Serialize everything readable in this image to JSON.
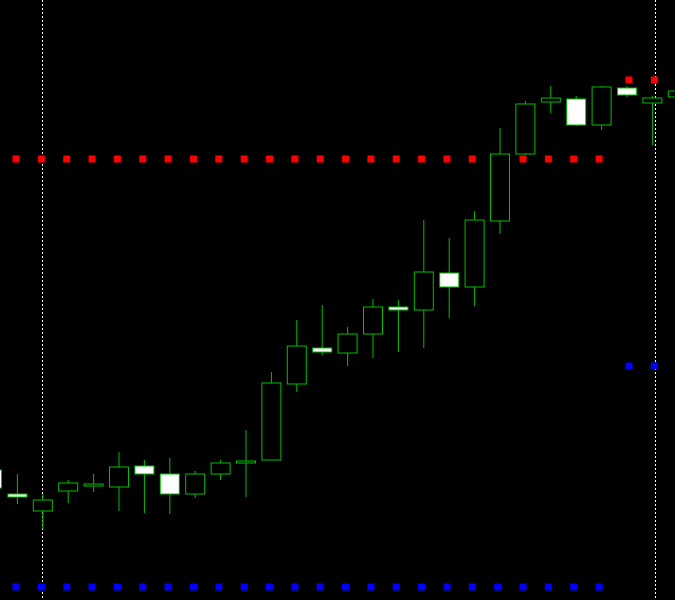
{
  "chart_data": {
    "type": "candlestick",
    "title": "",
    "xlabel": "",
    "ylabel": "",
    "background": "#000000",
    "colors": {
      "bull_body": "#000000",
      "bear_body": "#FFFFFF",
      "candle_outline": "#00C000",
      "wick": "#00C000",
      "resistance_dots": "#FF0000",
      "support_dots": "#0000FF",
      "vertical_separators": "#FFFFFF"
    },
    "grid": false,
    "legend": "none",
    "ylim": [
      0,
      600
    ],
    "candles": [
      {
        "open": 130,
        "close": 112,
        "high": 134,
        "low": 108
      },
      {
        "open": 106,
        "close": 103,
        "high": 126,
        "low": 96
      },
      {
        "open": 89,
        "close": 100,
        "high": 106,
        "low": 71
      },
      {
        "open": 109,
        "close": 117,
        "high": 120,
        "low": 97
      },
      {
        "open": 114,
        "close": 116,
        "high": 126,
        "low": 108
      },
      {
        "open": 113,
        "close": 133,
        "high": 148,
        "low": 89
      },
      {
        "open": 134,
        "close": 126,
        "high": 140,
        "low": 87
      },
      {
        "open": 126,
        "close": 106,
        "high": 142,
        "low": 86
      },
      {
        "open": 106,
        "close": 126,
        "high": 129,
        "low": 102
      },
      {
        "open": 126,
        "close": 137,
        "high": 140,
        "low": 120
      },
      {
        "open": 137,
        "close": 139,
        "high": 170,
        "low": 103
      },
      {
        "open": 140,
        "close": 217,
        "high": 228,
        "low": 140
      },
      {
        "open": 216,
        "close": 254,
        "high": 280,
        "low": 208
      },
      {
        "open": 252,
        "close": 248,
        "high": 295,
        "low": 245
      },
      {
        "open": 247,
        "close": 266,
        "high": 273,
        "low": 234
      },
      {
        "open": 266,
        "close": 293,
        "high": 301,
        "low": 242
      },
      {
        "open": 293,
        "close": 290,
        "high": 300,
        "low": 248
      },
      {
        "open": 290,
        "close": 328,
        "high": 380,
        "low": 252
      },
      {
        "open": 327,
        "close": 313,
        "high": 362,
        "low": 282
      },
      {
        "open": 313,
        "close": 380,
        "high": 389,
        "low": 294
      },
      {
        "open": 379,
        "close": 446,
        "high": 472,
        "low": 366
      },
      {
        "open": 446,
        "close": 496,
        "high": 499,
        "low": 445
      },
      {
        "open": 498,
        "close": 502,
        "high": 514,
        "low": 487
      },
      {
        "open": 501,
        "close": 475,
        "high": 504,
        "low": 474
      },
      {
        "open": 475,
        "close": 513,
        "high": 514,
        "low": 470
      },
      {
        "open": 512,
        "close": 505,
        "high": 514,
        "low": 503
      },
      {
        "open": 497,
        "close": 502,
        "high": 504,
        "low": 455
      },
      {
        "open": 503,
        "close": 509,
        "high": 512,
        "low": 500
      }
    ],
    "resistance_level": 441,
    "resistance_level_upper": 520,
    "support_level": 234,
    "support_level_lower": 13,
    "vertical_separators": [
      "left",
      "right"
    ]
  }
}
